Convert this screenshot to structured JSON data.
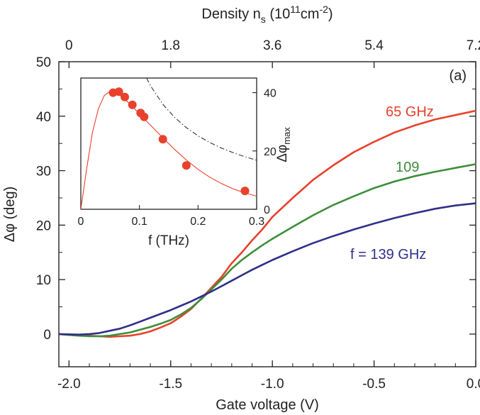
{
  "chart_data": {
    "type": "line",
    "panel_label": "(a)",
    "xlabel": "Gate voltage (V)",
    "ylabel": "Δφ (deg)",
    "xlim": [
      -2.05,
      0.0
    ],
    "ylim": [
      -6,
      50
    ],
    "xticks": [
      "-2.0",
      "-1.5",
      "-1.0",
      "-0.5",
      "0.0"
    ],
    "yticks": [
      "0",
      "10",
      "20",
      "30",
      "40",
      "50"
    ],
    "top_axis": {
      "label_main": "Density n",
      "label_sub": "s",
      "label_unit_open": " (10",
      "label_exp1": "11",
      "label_unit_mid": "cm",
      "label_exp2": "-2",
      "label_unit_close": ")",
      "ticks": [
        "0",
        "1.8",
        "3.6",
        "5.4",
        "7.2"
      ],
      "tick_voltages": [
        -2.0,
        -1.5,
        -1.0,
        -0.5,
        0.0
      ]
    },
    "series": [
      {
        "name": "65 GHz",
        "color": "#e8412c",
        "x": [
          -2.05,
          -1.95,
          -1.9,
          -1.85,
          -1.8,
          -1.75,
          -1.7,
          -1.65,
          -1.6,
          -1.55,
          -1.5,
          -1.45,
          -1.4,
          -1.35,
          -1.3,
          -1.25,
          -1.2,
          -1.15,
          -1.1,
          -1.05,
          -1.0,
          -0.9,
          -0.8,
          -0.7,
          -0.6,
          -0.5,
          -0.4,
          -0.3,
          -0.2,
          -0.1,
          0.0
        ],
        "y": [
          0,
          -0.3,
          -0.3,
          -0.4,
          -0.5,
          -0.4,
          -0.3,
          0.0,
          0.5,
          1.2,
          2.0,
          3.2,
          4.6,
          6.5,
          8.5,
          10.5,
          13.0,
          15.0,
          17.2,
          19.2,
          21.5,
          25.0,
          28.3,
          31.0,
          33.4,
          35.3,
          37.0,
          38.3,
          39.4,
          40.2,
          41.0
        ]
      },
      {
        "name": "109",
        "color": "#3c8e3a",
        "x": [
          -2.05,
          -1.95,
          -1.9,
          -1.85,
          -1.8,
          -1.75,
          -1.7,
          -1.65,
          -1.6,
          -1.55,
          -1.5,
          -1.45,
          -1.4,
          -1.35,
          -1.3,
          -1.25,
          -1.2,
          -1.15,
          -1.1,
          -1.05,
          -1.0,
          -0.9,
          -0.8,
          -0.7,
          -0.6,
          -0.5,
          -0.4,
          -0.3,
          -0.2,
          -0.1,
          0.0
        ],
        "y": [
          0,
          -0.3,
          -0.4,
          -0.4,
          -0.3,
          0.0,
          0.3,
          0.8,
          1.3,
          1.9,
          2.6,
          3.6,
          4.8,
          6.4,
          8.2,
          10.0,
          12.0,
          13.6,
          15.0,
          16.3,
          17.5,
          19.7,
          21.8,
          23.7,
          25.3,
          26.8,
          28.0,
          29.0,
          29.8,
          30.5,
          31.2
        ]
      },
      {
        "name": "f = 139 GHz",
        "color": "#2f2f8a",
        "x": [
          -2.05,
          -1.95,
          -1.9,
          -1.85,
          -1.8,
          -1.75,
          -1.7,
          -1.65,
          -1.6,
          -1.55,
          -1.5,
          -1.45,
          -1.4,
          -1.35,
          -1.3,
          -1.25,
          -1.2,
          -1.15,
          -1.1,
          -1.05,
          -1.0,
          -0.9,
          -0.8,
          -0.7,
          -0.6,
          -0.5,
          -0.4,
          -0.3,
          -0.2,
          -0.1,
          0.0
        ],
        "y": [
          0,
          -0.1,
          0.0,
          0.2,
          0.6,
          1.0,
          1.6,
          2.3,
          3.0,
          3.7,
          4.4,
          5.2,
          6.0,
          6.9,
          7.8,
          8.8,
          9.8,
          10.8,
          11.8,
          12.7,
          13.6,
          15.2,
          16.7,
          18.0,
          19.2,
          20.3,
          21.3,
          22.2,
          23.0,
          23.6,
          24.0
        ]
      }
    ],
    "inset": {
      "xlabel": "f (THz)",
      "ylabel_main": "Δφ",
      "ylabel_sub": "max",
      "xlim": [
        0,
        0.3
      ],
      "ylim": [
        0,
        45
      ],
      "xticks": [
        "0",
        "0.1",
        "0.2",
        "0.3"
      ],
      "yticks": [
        "0",
        "20",
        "40"
      ],
      "points": {
        "color": "#e8412c",
        "x": [
          0.055,
          0.065,
          0.075,
          0.088,
          0.102,
          0.108,
          0.14,
          0.18,
          0.28
        ],
        "y": [
          40.0,
          40.3,
          38.5,
          35.8,
          33.0,
          31.7,
          24.0,
          15.0,
          6.3
        ]
      },
      "fit_curve": {
        "color": "#e8412c",
        "x": [
          0.0,
          0.01,
          0.02,
          0.03,
          0.04,
          0.05,
          0.06,
          0.07,
          0.08,
          0.09,
          0.1,
          0.12,
          0.14,
          0.16,
          0.18,
          0.2,
          0.22,
          0.24,
          0.26,
          0.28,
          0.3
        ],
        "y": [
          0.0,
          14.0,
          26.5,
          34.5,
          39.0,
          40.5,
          40.0,
          38.6,
          36.8,
          34.8,
          32.7,
          28.6,
          24.5,
          20.5,
          16.9,
          13.7,
          11.0,
          8.8,
          7.0,
          5.6,
          4.5
        ]
      },
      "dashdot_curve": {
        "color": "#333333",
        "x": [
          0.112,
          0.12,
          0.14,
          0.16,
          0.18,
          0.2,
          0.22,
          0.24,
          0.26,
          0.28,
          0.3
        ],
        "y": [
          45.0,
          42.0,
          36.0,
          31.5,
          28.0,
          25.2,
          22.9,
          21.0,
          19.4,
          18.0,
          16.8
        ]
      }
    }
  }
}
